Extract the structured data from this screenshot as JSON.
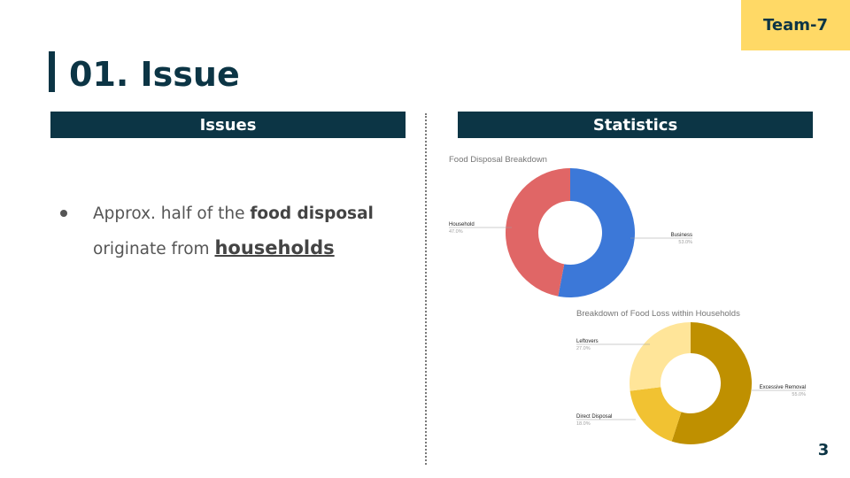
{
  "badge": {
    "team": "Team-7"
  },
  "title": {
    "text": "01. Issue"
  },
  "sections": {
    "issues": "Issues",
    "statistics": "Statistics"
  },
  "issues": {
    "pre": "Approx. half of the ",
    "bold": "food disposal",
    "mid": "originate from ",
    "emph": "households"
  },
  "page": {
    "number": "3"
  },
  "colors": {
    "navy": "#0c3545",
    "badge": "#ffd966",
    "household": "#e06666",
    "business": "#3c78d8",
    "excessive": "#bf9000",
    "direct": "#f1c232",
    "leftovers": "#ffe599"
  },
  "chart_data": [
    {
      "type": "pie",
      "title": "Food Disposal Breakdown",
      "labels": [
        "Business",
        "Household"
      ],
      "values": [
        53.0,
        47.0
      ],
      "value_labels": [
        "53.0%",
        "47.0%"
      ],
      "donut": true
    },
    {
      "type": "pie",
      "title": "Breakdown of Food Loss within Households",
      "labels": [
        "Excessive Removal",
        "Direct Disposal",
        "Leftovers"
      ],
      "values": [
        55.0,
        18.0,
        27.0
      ],
      "value_labels": [
        "55.0%",
        "18.0%",
        "27.0%"
      ],
      "donut": true
    }
  ]
}
